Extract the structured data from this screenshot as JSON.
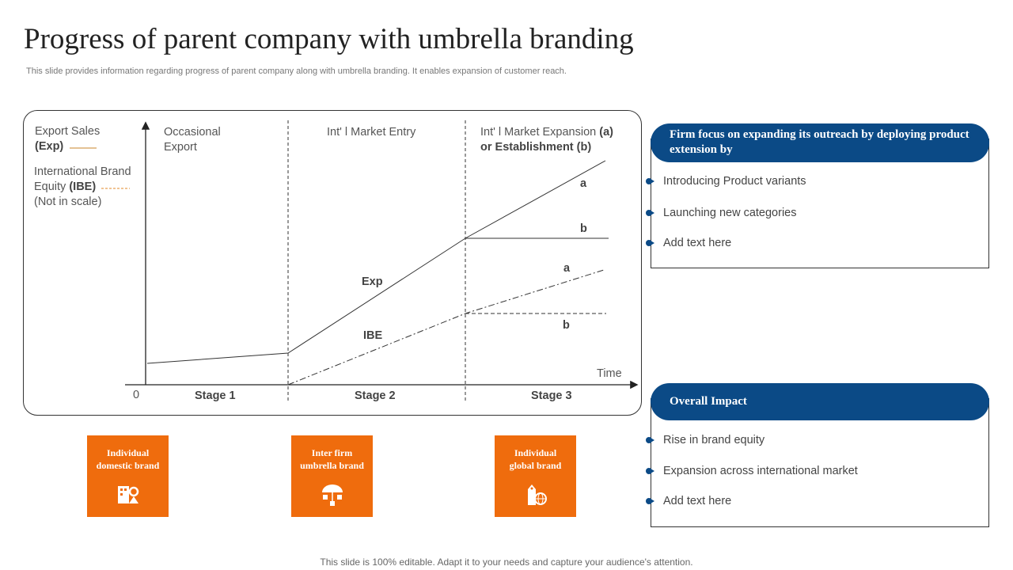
{
  "title": "Progress of parent company with umbrella branding",
  "subtitle": "This slide provides information regarding progress of parent company along with umbrella branding. It enables expansion of customer reach.",
  "footer": "This slide is 100% editable. Adapt it to your needs and capture your audience's attention.",
  "legend": {
    "exp_label": "Export Sales",
    "exp_abbr": "(Exp)",
    "ibe_label1": "International Brand",
    "ibe_label2": "Equity",
    "ibe_abbr": "(IBE)",
    "note": "(Not in scale)",
    "exp_color": "#c8862a",
    "ibe_color": "#e08a2a"
  },
  "diagram": {
    "phases": [
      "Occasional",
      "Export",
      "Int' l Market Entry",
      "Int' l Market Expansion",
      "(a)",
      "or Establishment (b)"
    ],
    "stages": [
      "Stage 1",
      "Stage 2",
      "Stage 3"
    ],
    "origin": "0",
    "x_axis": "Time",
    "line_labels": {
      "exp": "Exp",
      "ibe": "IBE",
      "a1": "a",
      "b1": "b",
      "a2": "a",
      "b2": "b"
    }
  },
  "brands": [
    {
      "line1": "Individual",
      "line2": "domestic brand",
      "icon": "building-location-icon"
    },
    {
      "line1": "Inter firm",
      "line2": "umbrella brand",
      "icon": "umbrella-boxes-icon"
    },
    {
      "line1": "Individual",
      "line2": "global brand",
      "icon": "tag-globe-icon"
    }
  ],
  "focus": {
    "header": "Firm focus on expanding its outreach by deploying product extension by",
    "items": [
      "Introducing Product variants",
      "Launching new categories",
      "Add text here"
    ]
  },
  "impact": {
    "header": "Overall Impact",
    "items": [
      "Rise in brand equity",
      "Expansion across international market",
      "Add text here"
    ]
  },
  "accent": "#0b4a86",
  "orange": "#ef6c0d"
}
